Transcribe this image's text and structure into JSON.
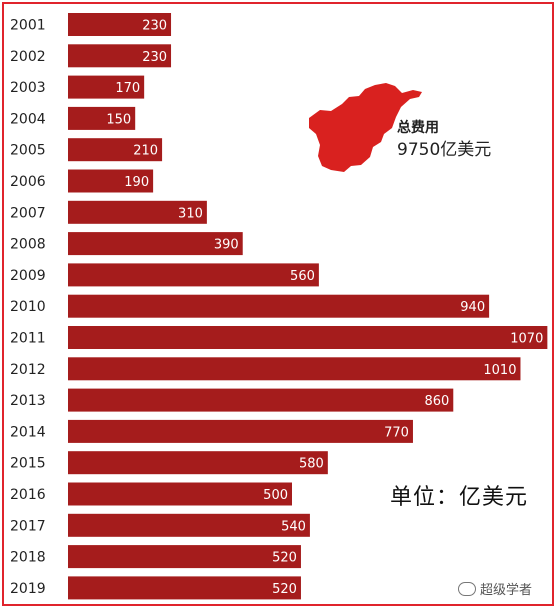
{
  "chart_data": {
    "type": "bar",
    "orientation": "horizontal",
    "categories": [
      "2001",
      "2002",
      "2003",
      "2004",
      "2005",
      "2006",
      "2007",
      "2008",
      "2009",
      "2010",
      "2011",
      "2012",
      "2013",
      "2014",
      "2015",
      "2016",
      "2017",
      "2018",
      "2019"
    ],
    "values": [
      230,
      230,
      170,
      150,
      210,
      190,
      310,
      390,
      560,
      940,
      1070,
      1010,
      860,
      770,
      580,
      500,
      540,
      520,
      520
    ],
    "bar_color": "#a51c1c",
    "value_label_color": "#ffffff",
    "annotation": {
      "line1": "总费用",
      "line2": "9750亿美元"
    },
    "unit_label": "单位：亿美元"
  },
  "map_color": "#d9211f",
  "frame_color": "#e0242c",
  "watermark": {
    "icon": "wechat-icon",
    "text": "超级学者"
  }
}
